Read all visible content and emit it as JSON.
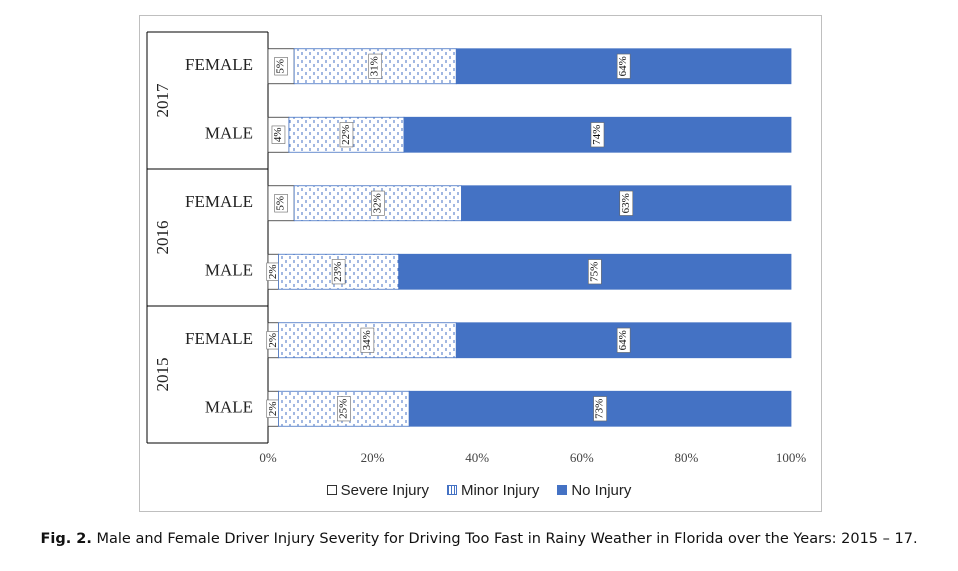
{
  "chart_data": {
    "type": "bar",
    "orientation": "horizontal",
    "stacked": "percent",
    "groups": [
      "2017",
      "2016",
      "2015"
    ],
    "categories": [
      {
        "group": "2017",
        "label": "FEMALE"
      },
      {
        "group": "2017",
        "label": "MALE"
      },
      {
        "group": "2016",
        "label": "FEMALE"
      },
      {
        "group": "2016",
        "label": "MALE"
      },
      {
        "group": "2015",
        "label": "FEMALE"
      },
      {
        "group": "2015",
        "label": "MALE"
      }
    ],
    "series": [
      {
        "name": "Severe Injury",
        "values": [
          5,
          4,
          5,
          2,
          2,
          2
        ],
        "labels": [
          "5%",
          "4%",
          "5%",
          "2%",
          "2%",
          "2%"
        ]
      },
      {
        "name": "Minor Injury",
        "values": [
          31,
          22,
          32,
          23,
          34,
          25
        ],
        "labels": [
          "31%",
          "22%",
          "32%",
          "23%",
          "34%",
          "25%"
        ]
      },
      {
        "name": "No Injury",
        "values": [
          64,
          74,
          63,
          75,
          64,
          73
        ],
        "labels": [
          "64%",
          "74%",
          "63%",
          "75%",
          "64%",
          "73%"
        ]
      }
    ],
    "x_ticks": [
      "0%",
      "20%",
      "40%",
      "60%",
      "80%",
      "100%"
    ],
    "xlim": [
      0,
      100
    ],
    "legend_position": "bottom",
    "grid": false
  },
  "colors": {
    "severe": "#ffffff",
    "minor_pattern": "#4472c4",
    "no_injury": "#4472c4",
    "axis": "#000000",
    "frame": "#bfbfbf"
  },
  "caption": {
    "label": "Fig. 2.",
    "text": "Male and Female Driver Injury Severity for Driving Too Fast in Rainy Weather in Florida over the Years: 2015 – 17."
  }
}
